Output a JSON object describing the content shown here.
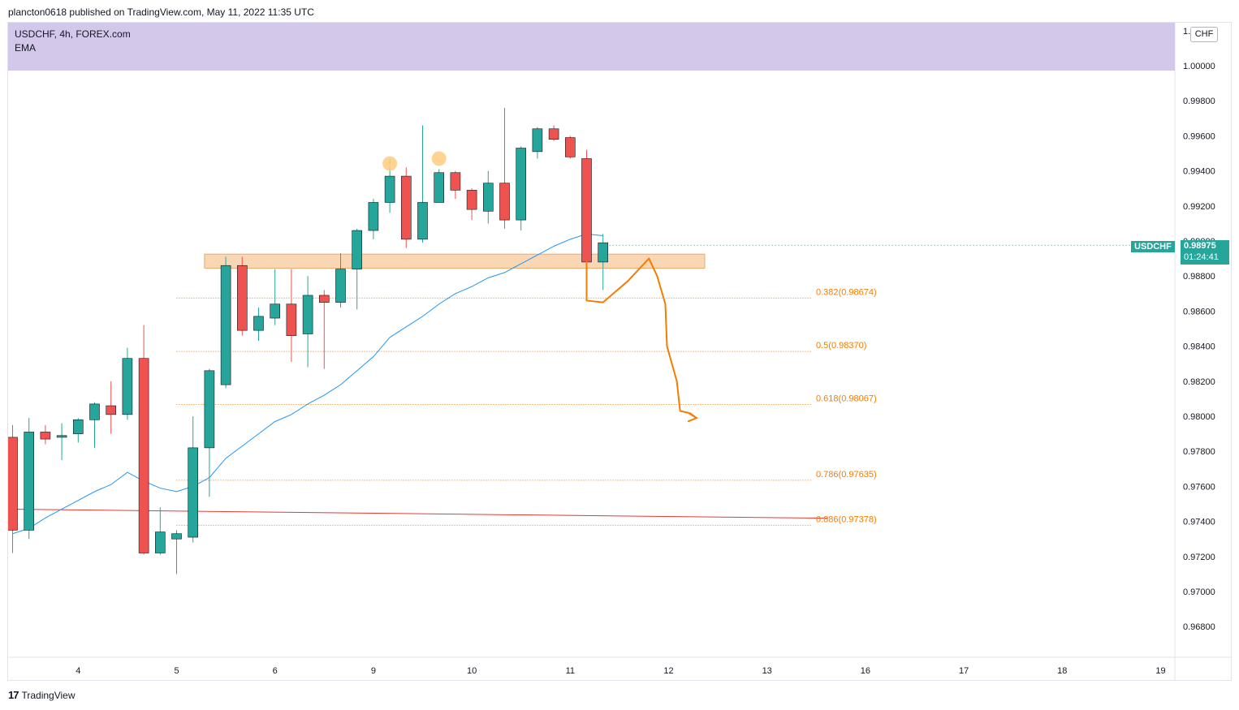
{
  "header": "plancton0618 published on TradingView.com, May 11, 2022 11:35 UTC",
  "legend": {
    "symbol_line": "USDCHF, 4h, FOREX.com",
    "indicator": "EMA"
  },
  "currency_button": "CHF",
  "last_price": {
    "symbol": "USDCHF",
    "price": "0.98975",
    "countdown": "01:24:41"
  },
  "footer": {
    "logo": "17",
    "brand": "TradingView"
  },
  "colors": {
    "bull": "#26a69a",
    "bear": "#ef5350",
    "ema": "#2196f3",
    "ema_long": "#e53935",
    "fib": "#f57c00",
    "zone": "#f6c28e",
    "legend_band": "#d1c4e9",
    "marker": "#ffcc80"
  },
  "chart_data": {
    "type": "candlestick",
    "y_axis": {
      "min": 0.966,
      "max": 1.002,
      "ticks": [
        "1.00200",
        "1.00000",
        "0.99800",
        "0.99600",
        "0.99400",
        "0.99200",
        "0.99000",
        "0.98800",
        "0.98600",
        "0.98400",
        "0.98200",
        "0.98000",
        "0.97800",
        "0.97600",
        "0.97400",
        "0.97200",
        "0.97000",
        "0.96800"
      ],
      "tick_values": [
        1.002,
        1.0,
        0.998,
        0.996,
        0.994,
        0.992,
        0.99,
        0.988,
        0.986,
        0.984,
        0.982,
        0.98,
        0.978,
        0.976,
        0.974,
        0.972,
        0.97,
        0.968
      ]
    },
    "x_axis": {
      "labels": [
        "4",
        "5",
        "6",
        "9",
        "10",
        "11",
        "12",
        "13",
        "16",
        "17",
        "18",
        "19"
      ],
      "label_bar_index": [
        4,
        10,
        16,
        22,
        28,
        34,
        40,
        46,
        52,
        58,
        64,
        70
      ]
    },
    "candles": [
      {
        "o": 0.9788,
        "h": 0.9795,
        "l": 0.9722,
        "c": 0.9735
      },
      {
        "o": 0.9735,
        "h": 0.9799,
        "l": 0.973,
        "c": 0.9791
      },
      {
        "o": 0.9791,
        "h": 0.9795,
        "l": 0.9784,
        "c": 0.9787
      },
      {
        "o": 0.9788,
        "h": 0.9796,
        "l": 0.9775,
        "c": 0.9789
      },
      {
        "o": 0.979,
        "h": 0.9799,
        "l": 0.9785,
        "c": 0.9798
      },
      {
        "o": 0.9798,
        "h": 0.9808,
        "l": 0.9782,
        "c": 0.9807
      },
      {
        "o": 0.9806,
        "h": 0.982,
        "l": 0.979,
        "c": 0.9801
      },
      {
        "o": 0.9801,
        "h": 0.9839,
        "l": 0.9798,
        "c": 0.9833
      },
      {
        "o": 0.9833,
        "h": 0.9852,
        "l": 0.9721,
        "c": 0.9722
      },
      {
        "o": 0.9722,
        "h": 0.9748,
        "l": 0.9721,
        "c": 0.9734
      },
      {
        "o": 0.973,
        "h": 0.9735,
        "l": 0.971,
        "c": 0.9733
      },
      {
        "o": 0.9731,
        "h": 0.98,
        "l": 0.9728,
        "c": 0.9782
      },
      {
        "o": 0.9782,
        "h": 0.9827,
        "l": 0.9754,
        "c": 0.9826
      },
      {
        "o": 0.9818,
        "h": 0.9891,
        "l": 0.9816,
        "c": 0.9886
      },
      {
        "o": 0.9886,
        "h": 0.9891,
        "l": 0.9846,
        "c": 0.9849
      },
      {
        "o": 0.9849,
        "h": 0.9862,
        "l": 0.9843,
        "c": 0.9857
      },
      {
        "o": 0.9856,
        "h": 0.9884,
        "l": 0.9852,
        "c": 0.9864
      },
      {
        "o": 0.9864,
        "h": 0.9884,
        "l": 0.9831,
        "c": 0.9846
      },
      {
        "o": 0.9847,
        "h": 0.988,
        "l": 0.9828,
        "c": 0.9869
      },
      {
        "o": 0.9869,
        "h": 0.9872,
        "l": 0.9827,
        "c": 0.9865
      },
      {
        "o": 0.9865,
        "h": 0.9893,
        "l": 0.9862,
        "c": 0.9884
      },
      {
        "o": 0.9884,
        "h": 0.9907,
        "l": 0.9861,
        "c": 0.9906
      },
      {
        "o": 0.9906,
        "h": 0.9924,
        "l": 0.9901,
        "c": 0.9922
      },
      {
        "o": 0.9922,
        "h": 0.9947,
        "l": 0.9916,
        "c": 0.9937
      },
      {
        "o": 0.9937,
        "h": 0.9942,
        "l": 0.9896,
        "c": 0.9901
      },
      {
        "o": 0.9901,
        "h": 0.9966,
        "l": 0.9899,
        "c": 0.9922
      },
      {
        "o": 0.9922,
        "h": 0.9941,
        "l": 0.9922,
        "c": 0.9939
      },
      {
        "o": 0.9939,
        "h": 0.994,
        "l": 0.9924,
        "c": 0.9929
      },
      {
        "o": 0.9929,
        "h": 0.993,
        "l": 0.9912,
        "c": 0.9918
      },
      {
        "o": 0.9917,
        "h": 0.994,
        "l": 0.991,
        "c": 0.9933
      },
      {
        "o": 0.9933,
        "h": 0.9976,
        "l": 0.9907,
        "c": 0.9912
      },
      {
        "o": 0.9912,
        "h": 0.9954,
        "l": 0.9906,
        "c": 0.9953
      },
      {
        "o": 0.9951,
        "h": 0.9965,
        "l": 0.9947,
        "c": 0.9964
      },
      {
        "o": 0.9964,
        "h": 0.9966,
        "l": 0.9957,
        "c": 0.9958
      },
      {
        "o": 0.9959,
        "h": 0.996,
        "l": 0.9947,
        "c": 0.9948
      },
      {
        "o": 0.9947,
        "h": 0.9952,
        "l": 0.9888,
        "c": 0.9888
      },
      {
        "o": 0.9888,
        "h": 0.9904,
        "l": 0.9872,
        "c": 0.9899
      }
    ],
    "ema_short": [
      0.9733,
      0.9736,
      0.9742,
      0.9747,
      0.9752,
      0.9757,
      0.9761,
      0.9768,
      0.9763,
      0.9759,
      0.9757,
      0.976,
      0.9765,
      0.9776,
      0.9783,
      0.979,
      0.9797,
      0.9801,
      0.9807,
      0.9812,
      0.9818,
      0.9826,
      0.9834,
      0.9845,
      0.9851,
      0.9857,
      0.9864,
      0.987,
      0.9874,
      0.9879,
      0.9882,
      0.9887,
      0.9892,
      0.9897,
      0.9901,
      0.9904,
      0.9903
    ],
    "ema_long": {
      "from": 0.9747,
      "to": 0.97418
    },
    "demand_zone": {
      "top": 0.98925,
      "bottom": 0.98845,
      "from_bar": 11.7,
      "to_bar": 42.2
    },
    "circle_markers": [
      {
        "bar": 23.0,
        "value": 0.99442
      },
      {
        "bar": 26.0,
        "value": 0.9947
      }
    ],
    "fib_levels": [
      {
        "label": "0.382(0.98674)",
        "value": 0.98674
      },
      {
        "label": "0.5(0.98370)",
        "value": 0.9837
      },
      {
        "label": "0.618(0.98067)",
        "value": 0.98067
      },
      {
        "label": "0.786(0.97635)",
        "value": 0.97635
      },
      {
        "label": "0.886(0.97378)",
        "value": 0.97378
      }
    ],
    "projection_path": [
      [
        35.0,
        0.9888
      ],
      [
        35.0,
        0.9866
      ],
      [
        36.0,
        0.9865
      ],
      [
        37.5,
        0.9877
      ],
      [
        38.8,
        0.989
      ],
      [
        39.3,
        0.988
      ],
      [
        39.8,
        0.9864
      ],
      [
        39.9,
        0.984
      ],
      [
        40.5,
        0.982
      ],
      [
        40.7,
        0.9803
      ],
      [
        41.2,
        0.9802
      ],
      [
        41.7,
        0.9799
      ]
    ]
  }
}
